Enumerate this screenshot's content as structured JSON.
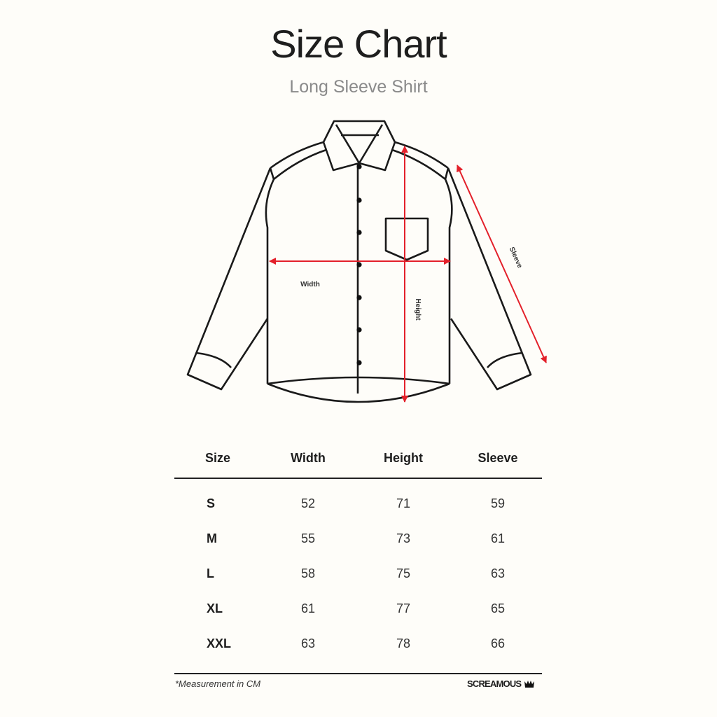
{
  "title": "Size Chart",
  "subtitle": "Long Sleeve Shirt",
  "diagram": {
    "labels": {
      "width": "Width",
      "height": "Height",
      "sleeve": "Sleeve"
    },
    "arrow_color": "#e3202a"
  },
  "table": {
    "headers": [
      "Size",
      "Width",
      "Height",
      "Sleeve"
    ],
    "rows": [
      [
        "S",
        "52",
        "71",
        "59"
      ],
      [
        "M",
        "55",
        "73",
        "61"
      ],
      [
        "L",
        "58",
        "75",
        "63"
      ],
      [
        "XL",
        "61",
        "77",
        "65"
      ],
      [
        "XXL",
        "63",
        "78",
        "66"
      ]
    ]
  },
  "footer": {
    "note": "*Measurement in CM",
    "brand": "SCREAMOUS"
  }
}
